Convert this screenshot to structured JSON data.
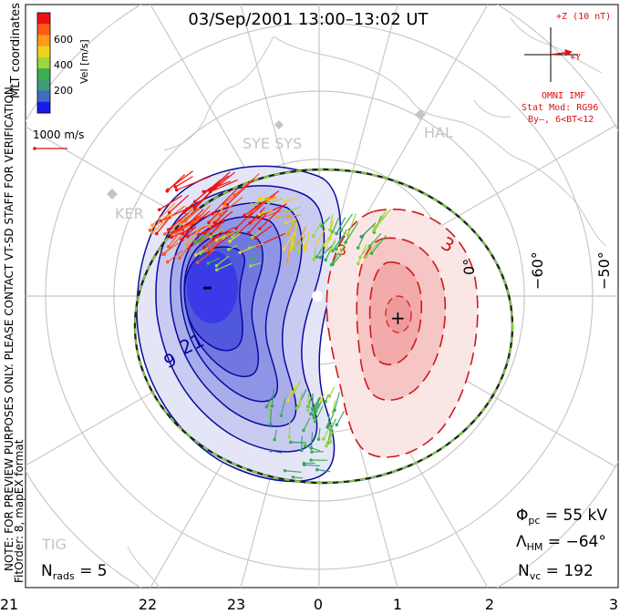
{
  "title": "03/Sep/2001 13:00–13:02 UT",
  "coord_label": "MLT coordinates",
  "colorbar": {
    "label": "Vel [m/s]",
    "ticks": [
      "600",
      "400",
      "200"
    ],
    "colors": [
      "#ee1111",
      "#ff5a1a",
      "#ff9a1a",
      "#f2d21a",
      "#9ad83c",
      "#3fae4f",
      "#3f9a78",
      "#3f6cc0",
      "#1a1aee"
    ]
  },
  "velocity_scale": "1000 m/s",
  "side_note": "NOTE: FOR PREVIEW PURPOSES ONLY. PLEASE CONTACT VT-SD STAFF FOR VERIFICATION.",
  "fit_note": "FitOrder: 8, mapEX format",
  "imf": {
    "z_label": "+Z (10 nT)",
    "y_label": "+Y",
    "source": "OMNI IMF",
    "model": "Stat Mod: RG96",
    "condition": "By–, 6<BT<12",
    "color": "#dd1111"
  },
  "stations": [
    "SYE SYS",
    "HAL",
    "KER",
    "TIG"
  ],
  "lat_labels": [
    "−60°",
    "−50°"
  ],
  "mlt_labels": [
    "21",
    "22",
    "23",
    "0",
    "1",
    "2",
    "3"
  ],
  "contour_labels": {
    "neg1": "21",
    "neg2": "9",
    "pos1": "3",
    "pos2": "3"
  },
  "stats": {
    "phi_pc_sym": "Φ",
    "phi_pc_sub": "pc",
    "phi_pc_value": " = 55 kV",
    "lambda_sym": "Λ",
    "lambda_sub": "HM",
    "lambda_value": " = −64°",
    "nvc_sym": "N",
    "nvc_sub": "vc",
    "nvc_value": " = 192",
    "nrads_sym": "N",
    "nrads_sub": "rads",
    "nrads_value": " = 5"
  },
  "cells": {
    "negative": {
      "marker": "–",
      "fill": "#3a3ae8",
      "line": "#0a0aa0"
    },
    "positive": {
      "marker": "+",
      "fill": "#f0aaaa",
      "line": "#d01818"
    }
  },
  "boundary_color": "#7ad23a"
}
